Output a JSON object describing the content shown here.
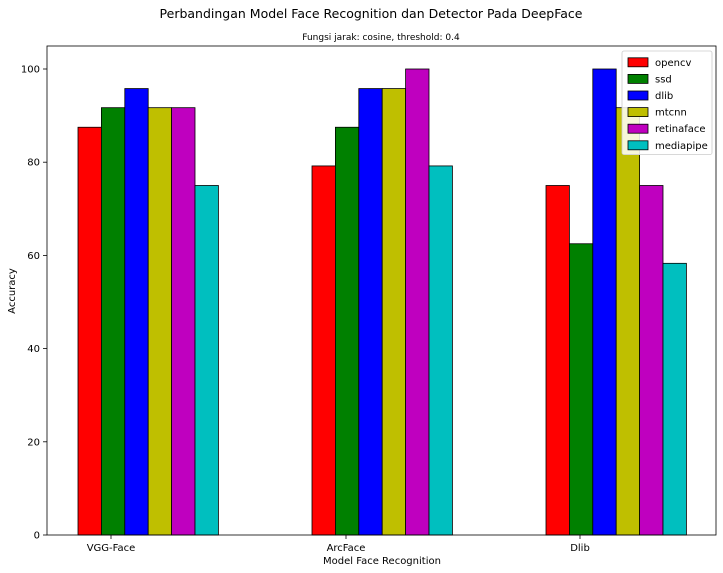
{
  "chart_data": {
    "type": "bar",
    "title": "Perbandingan Model Face Recognition dan Detector Pada DeepFace",
    "subtitle": "Fungsi jarak: cosine, threshold: 0.4",
    "xlabel": "Model Face Recognition",
    "ylabel": "Accuracy",
    "categories": [
      "VGG-Face",
      "ArcFace",
      "Dlib"
    ],
    "ylim": [
      0,
      105
    ],
    "yticks": [
      0,
      20,
      40,
      60,
      80,
      100
    ],
    "grid": false,
    "legend_position": "top-right",
    "series": [
      {
        "name": "opencv",
        "color": "#ff0000",
        "values": [
          87.5,
          79.2,
          75.0
        ]
      },
      {
        "name": "ssd",
        "color": "#008000",
        "values": [
          91.7,
          87.5,
          62.5
        ]
      },
      {
        "name": "dlib",
        "color": "#0000ff",
        "values": [
          95.8,
          95.8,
          100.0
        ]
      },
      {
        "name": "mtcnn",
        "color": "#bfbf00",
        "values": [
          91.7,
          95.8,
          91.7
        ]
      },
      {
        "name": "retinaface",
        "color": "#bf00bf",
        "values": [
          91.7,
          100.0,
          75.0
        ]
      },
      {
        "name": "mediapipe",
        "color": "#00bfbf",
        "values": [
          75.0,
          79.2,
          58.3
        ]
      }
    ]
  }
}
